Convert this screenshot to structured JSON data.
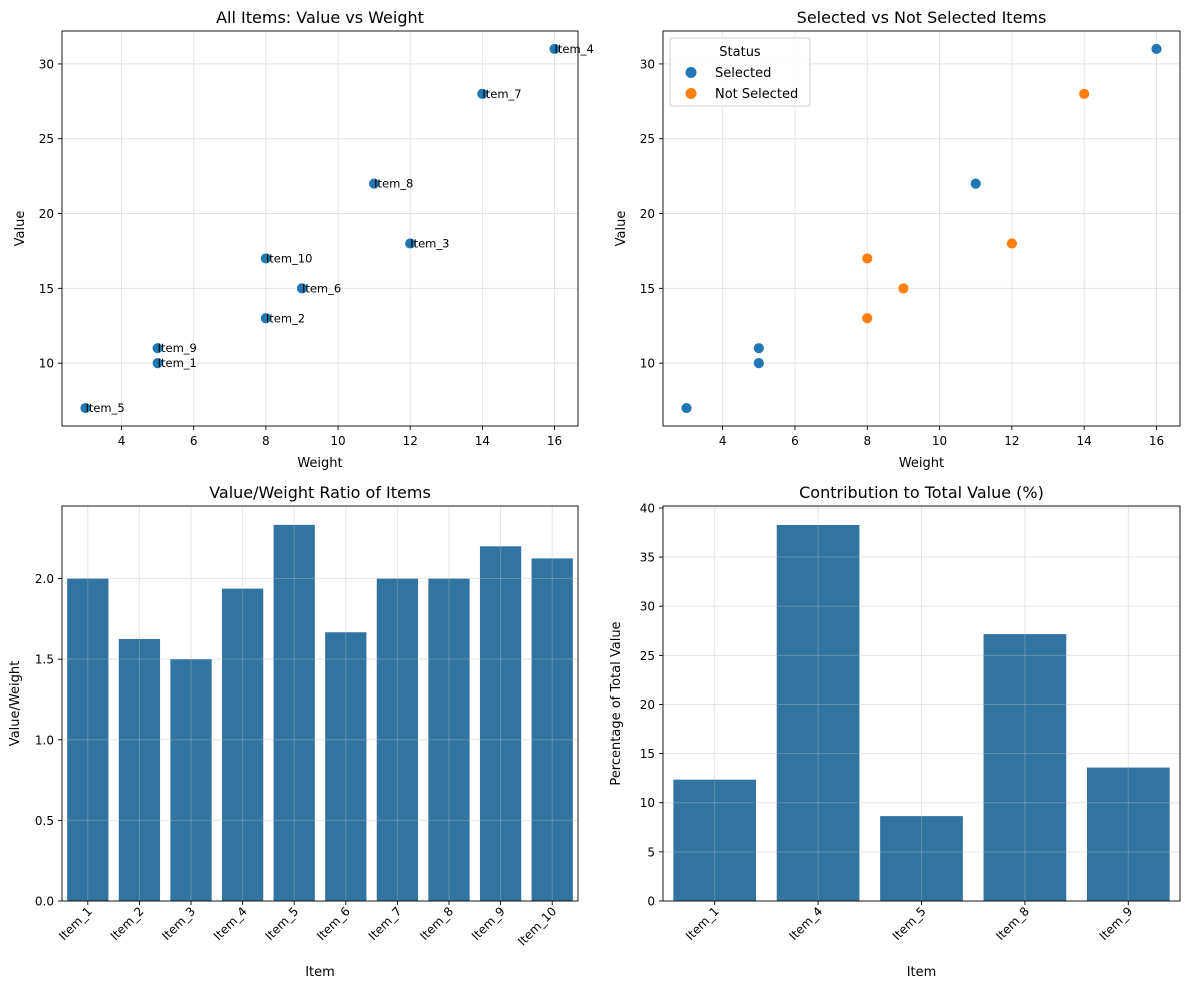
{
  "colors": {
    "selected": "#1f77b4",
    "not_selected": "#ff7f0e",
    "bar": "#3274a1",
    "grid": "#e3e3e3"
  },
  "chart_data": [
    {
      "type": "scatter",
      "title": "All Items: Value vs Weight",
      "xlabel": "Weight",
      "ylabel": "Value",
      "xlim": [
        2.35,
        16.65
      ],
      "ylim": [
        5.8,
        32.2
      ],
      "xticks": [
        4,
        6,
        8,
        10,
        12,
        14,
        16
      ],
      "yticks": [
        10,
        15,
        20,
        25,
        30
      ],
      "grid": true,
      "points": [
        {
          "label": "Item_1",
          "x": 5,
          "y": 10
        },
        {
          "label": "Item_2",
          "x": 8,
          "y": 13
        },
        {
          "label": "Item_3",
          "x": 12,
          "y": 18
        },
        {
          "label": "Item_4",
          "x": 16,
          "y": 31
        },
        {
          "label": "Item_5",
          "x": 3,
          "y": 7
        },
        {
          "label": "Item_6",
          "x": 9,
          "y": 15
        },
        {
          "label": "Item_7",
          "x": 14,
          "y": 28
        },
        {
          "label": "Item_8",
          "x": 11,
          "y": 22
        },
        {
          "label": "Item_9",
          "x": 5,
          "y": 11
        },
        {
          "label": "Item_10",
          "x": 8,
          "y": 17
        }
      ]
    },
    {
      "type": "scatter",
      "title": "Selected vs Not Selected Items",
      "xlabel": "Weight",
      "ylabel": "Value",
      "xlim": [
        2.35,
        16.65
      ],
      "ylim": [
        5.8,
        32.2
      ],
      "xticks": [
        4,
        6,
        8,
        10,
        12,
        14,
        16
      ],
      "yticks": [
        10,
        15,
        20,
        25,
        30
      ],
      "grid": true,
      "legend": {
        "title": "Status",
        "position": "top-left",
        "entries": [
          "Selected",
          "Not Selected"
        ]
      },
      "points": [
        {
          "x": 5,
          "y": 10,
          "status": "Selected"
        },
        {
          "x": 8,
          "y": 13,
          "status": "Not Selected"
        },
        {
          "x": 12,
          "y": 18,
          "status": "Not Selected"
        },
        {
          "x": 16,
          "y": 31,
          "status": "Selected"
        },
        {
          "x": 3,
          "y": 7,
          "status": "Selected"
        },
        {
          "x": 9,
          "y": 15,
          "status": "Not Selected"
        },
        {
          "x": 14,
          "y": 28,
          "status": "Not Selected"
        },
        {
          "x": 11,
          "y": 22,
          "status": "Selected"
        },
        {
          "x": 5,
          "y": 11,
          "status": "Selected"
        },
        {
          "x": 8,
          "y": 17,
          "status": "Not Selected"
        }
      ]
    },
    {
      "type": "bar",
      "title": "Value/Weight Ratio of Items",
      "xlabel": "Item",
      "ylabel": "Value/Weight",
      "ylim": [
        0,
        2.45
      ],
      "yticks": [
        0.0,
        0.5,
        1.0,
        1.5,
        2.0
      ],
      "ytick_labels": [
        "0.0",
        "0.5",
        "1.0",
        "1.5",
        "2.0"
      ],
      "grid": true,
      "categories": [
        "Item_1",
        "Item_2",
        "Item_3",
        "Item_4",
        "Item_5",
        "Item_6",
        "Item_7",
        "Item_8",
        "Item_9",
        "Item_10"
      ],
      "values": [
        2.0,
        1.625,
        1.5,
        1.9375,
        2.333,
        1.667,
        2.0,
        2.0,
        2.2,
        2.125
      ]
    },
    {
      "type": "bar",
      "title": "Contribution to Total Value (%)",
      "xlabel": "Item",
      "ylabel": "Percentage of Total Value",
      "ylim": [
        0,
        40.2
      ],
      "yticks": [
        0,
        5,
        10,
        15,
        20,
        25,
        30,
        35,
        40
      ],
      "ytick_labels": [
        "0",
        "5",
        "10",
        "15",
        "20",
        "25",
        "30",
        "35",
        "40"
      ],
      "grid": true,
      "categories": [
        "Item_1",
        "Item_4",
        "Item_5",
        "Item_8",
        "Item_9"
      ],
      "values": [
        12.35,
        38.27,
        8.64,
        27.16,
        13.58
      ]
    }
  ]
}
